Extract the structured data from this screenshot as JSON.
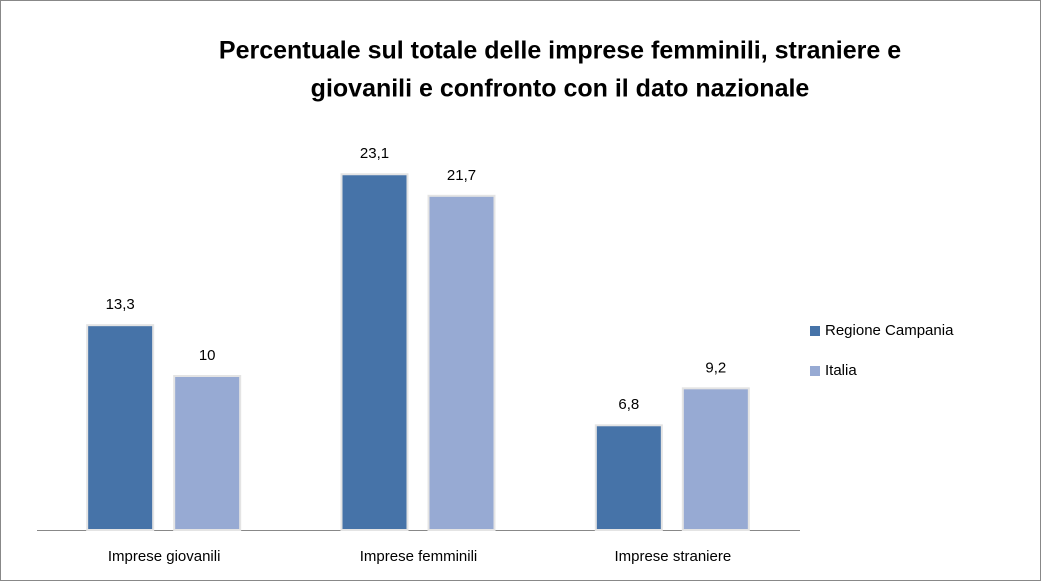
{
  "chart_data": {
    "type": "bar",
    "title": [
      "Percentuale sul totale delle imprese femminili, straniere e",
      "giovanili e confronto con il dato nazionale"
    ],
    "categories": [
      "Imprese giovanili",
      "Imprese femminili",
      "Imprese straniere"
    ],
    "series": [
      {
        "name": "Regione Campania",
        "color": "#4673a8",
        "values": [
          13.3,
          23.1,
          6.8
        ],
        "value_labels": [
          "13,3",
          "23,1",
          "6,8"
        ]
      },
      {
        "name": "Italia",
        "color": "#97aad3",
        "values": [
          10,
          21.7,
          9.2
        ],
        "value_labels": [
          "10",
          "21,7",
          "9,2"
        ]
      }
    ],
    "ylim": [
      0,
      25
    ],
    "legend": "right"
  }
}
